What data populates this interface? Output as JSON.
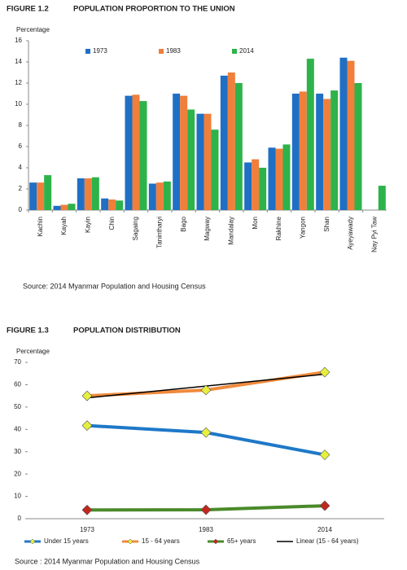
{
  "chart_data": [
    {
      "type": "bar",
      "figure_number": "FIGURE 1.2",
      "title": "POPULATION PROPORTION TO THE UNION",
      "y_label": "Percentage",
      "categories": [
        "Kachin",
        "Kayah",
        "Kayin",
        "Chin",
        "Sagaing",
        "Tanintharyi",
        "Bago",
        "Magway",
        "Mandalay",
        "Mon",
        "Rakhine",
        "Yangon",
        "Shan",
        "Ayeyawady",
        "Nay Pyi Taw"
      ],
      "series": [
        {
          "name": "1973",
          "color": "#1f6fc5",
          "values": [
            2.6,
            0.4,
            3.0,
            1.1,
            10.8,
            2.5,
            11.0,
            9.1,
            12.7,
            4.5,
            5.9,
            11.0,
            11.0,
            14.4,
            null
          ]
        },
        {
          "name": "1983",
          "color": "#f07f3c",
          "values": [
            2.6,
            0.5,
            3.0,
            1.0,
            10.9,
            2.6,
            10.8,
            9.1,
            13.0,
            4.8,
            5.8,
            11.2,
            10.5,
            14.1,
            null
          ]
        },
        {
          "name": "2014",
          "color": "#2db34a",
          "values": [
            3.3,
            0.6,
            3.1,
            0.9,
            10.3,
            2.7,
            9.5,
            7.6,
            12.0,
            4.0,
            6.2,
            14.3,
            11.3,
            12.0,
            2.3
          ]
        }
      ],
      "ylim": [
        0,
        16
      ],
      "yticks": [
        0,
        2,
        4,
        6,
        8,
        10,
        12,
        14,
        16
      ],
      "grid": false,
      "legend": "top",
      "source": "Source: 2014 Myanmar Population and Housing Census"
    },
    {
      "type": "line",
      "figure_number": "FIGURE 1.3",
      "title": "POPULATION DISTRIBUTION",
      "y_label": "Percentage",
      "categories": [
        "1973",
        "1983",
        "2014"
      ],
      "series": [
        {
          "name": "Under 15 years",
          "color": "#1e78c8",
          "marker_color": "#e6f03c",
          "values": [
            41.7,
            38.6,
            28.6
          ]
        },
        {
          "name": "15 - 64 years",
          "color": "#f08a3c",
          "marker_color": "#e6f03c",
          "values": [
            55.0,
            57.6,
            65.6
          ]
        },
        {
          "name": "65+ years",
          "color": "#4a8a2a",
          "marker_color": "#c0281e",
          "values": [
            3.9,
            4.0,
            5.8
          ]
        },
        {
          "name": "Linear (15 - 64 years)",
          "color": "#000000",
          "values": [
            54.1,
            59.4,
            64.7
          ]
        }
      ],
      "ylim": [
        0,
        70
      ],
      "yticks": [
        0,
        10,
        20,
        30,
        40,
        50,
        60,
        70
      ],
      "grid": false,
      "legend": "bottom",
      "source": "Source : 2014 Myanmar Population and Housing Census"
    }
  ]
}
